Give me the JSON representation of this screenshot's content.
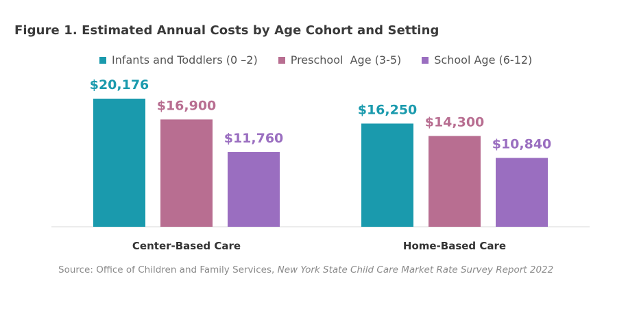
{
  "chart_data": {
    "type": "bar",
    "title": "Figure 1. Estimated Annual Costs by Age Cohort and Setting",
    "categories": [
      "Center-Based Care",
      "Home-Based Care"
    ],
    "series": [
      {
        "name": "Infants and Toddlers (0 –2)",
        "color": "#1a9aad",
        "values": [
          20176,
          16250
        ],
        "labels": [
          "$20,176",
          "$16,250"
        ]
      },
      {
        "name": "Preschool  Age (3-5)",
        "color": "#b86e91",
        "values": [
          16900,
          14300
        ],
        "labels": [
          "$16,900",
          "$14,300"
        ]
      },
      {
        "name": "School Age (6-12)",
        "color": "#9a6ec0",
        "values": [
          11760,
          10840
        ],
        "labels": [
          "$11,760",
          "$10,840"
        ]
      }
    ],
    "ylim": [
      0,
      20176
    ],
    "grid": false,
    "legend_position": "top"
  },
  "source": {
    "prefix": "Source: Office of Children and Family Services, ",
    "italic": "New York State Child Care Market Rate Survey Report 2022"
  }
}
